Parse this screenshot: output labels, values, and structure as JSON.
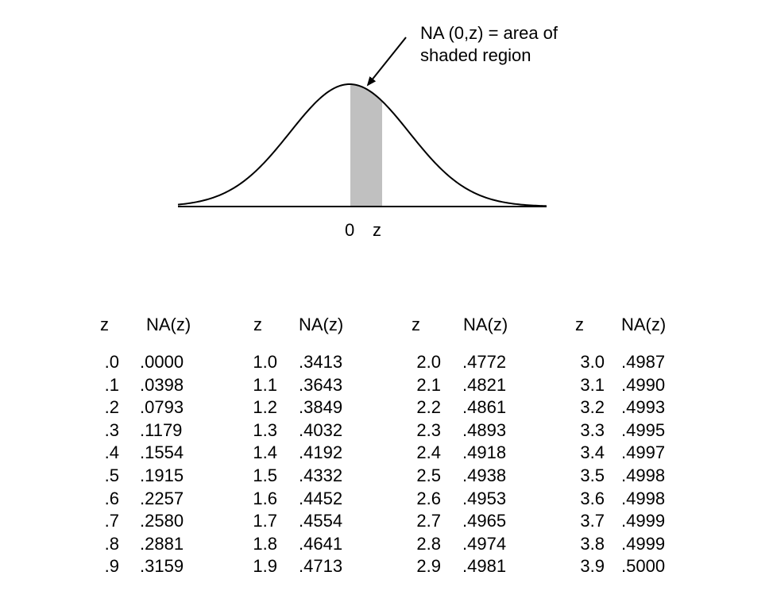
{
  "diagram": {
    "callout_line1": "NA (0,z) = area of",
    "callout_line2": "shaded region",
    "zero_label": "0",
    "z_label": "z",
    "curve_color": "#000000",
    "shade_color": "#c0c0c0"
  },
  "table": {
    "columns": [
      {
        "z_header": "z",
        "na_header": "NA(z)",
        "rows": [
          {
            "z": ".0",
            "na": ".0000"
          },
          {
            "z": ".1",
            "na": ".0398"
          },
          {
            "z": ".2",
            "na": ".0793"
          },
          {
            "z": ".3",
            "na": ".1179"
          },
          {
            "z": ".4",
            "na": ".1554"
          },
          {
            "z": ".5",
            "na": ".1915"
          },
          {
            "z": ".6",
            "na": ".2257"
          },
          {
            "z": ".7",
            "na": ".2580"
          },
          {
            "z": ".8",
            "na": ".2881"
          },
          {
            "z": ".9",
            "na": ".3159"
          }
        ]
      },
      {
        "z_header": "z",
        "na_header": "NA(z)",
        "rows": [
          {
            "z": "1.0",
            "na": ".3413"
          },
          {
            "z": "1.1",
            "na": ".3643"
          },
          {
            "z": "1.2",
            "na": ".3849"
          },
          {
            "z": "1.3",
            "na": ".4032"
          },
          {
            "z": "1.4",
            "na": ".4192"
          },
          {
            "z": "1.5",
            "na": ".4332"
          },
          {
            "z": "1.6",
            "na": ".4452"
          },
          {
            "z": "1.7",
            "na": ".4554"
          },
          {
            "z": "1.8",
            "na": ".4641"
          },
          {
            "z": "1.9",
            "na": ".4713"
          }
        ]
      },
      {
        "z_header": "z",
        "na_header": "NA(z)",
        "rows": [
          {
            "z": "2.0",
            "na": ".4772"
          },
          {
            "z": "2.1",
            "na": ".4821"
          },
          {
            "z": "2.2",
            "na": ".4861"
          },
          {
            "z": "2.3",
            "na": ".4893"
          },
          {
            "z": "2.4",
            "na": ".4918"
          },
          {
            "z": "2.5",
            "na": ".4938"
          },
          {
            "z": "2.6",
            "na": ".4953"
          },
          {
            "z": "2.7",
            "na": ".4965"
          },
          {
            "z": "2.8",
            "na": ".4974"
          },
          {
            "z": "2.9",
            "na": ".4981"
          }
        ]
      },
      {
        "z_header": "z",
        "na_header": "NA(z)",
        "rows": [
          {
            "z": "3.0",
            "na": ".4987"
          },
          {
            "z": "3.1",
            "na": ".4990"
          },
          {
            "z": "3.2",
            "na": ".4993"
          },
          {
            "z": "3.3",
            "na": ".4995"
          },
          {
            "z": "3.4",
            "na": ".4997"
          },
          {
            "z": "3.5",
            "na": ".4998"
          },
          {
            "z": "3.6",
            "na": ".4998"
          },
          {
            "z": "3.7",
            "na": ".4999"
          },
          {
            "z": "3.8",
            "na": ".4999"
          },
          {
            "z": "3.9",
            "na": ".5000"
          }
        ]
      }
    ]
  }
}
